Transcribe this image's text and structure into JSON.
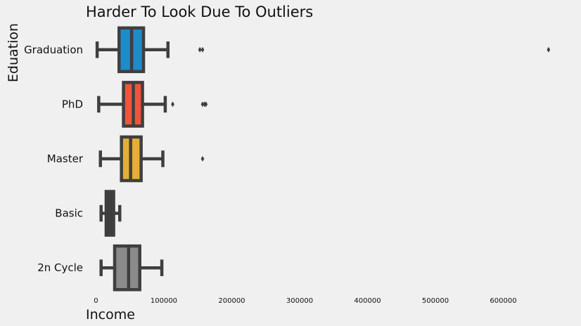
{
  "chart_data": {
    "type": "boxplot",
    "orientation": "horizontal",
    "title": "Harder To Look Due To Outliers",
    "xlabel": "Income",
    "ylabel": "Eduation",
    "xlim": [
      -15000,
      700000
    ],
    "xticks": [
      0,
      100000,
      200000,
      300000,
      400000,
      500000,
      600000
    ],
    "grid": false,
    "categories": [
      "Graduation",
      "PhD",
      "Master",
      "Basic",
      "2n Cycle"
    ],
    "boxes": [
      {
        "category": "Graduation",
        "color": "#1f8bc8",
        "whisker_low": 1700,
        "q1": 34000,
        "median": 52500,
        "q3": 70000,
        "whisker_high": 106000,
        "outliers": [
          153000,
          157000,
          666666
        ]
      },
      {
        "category": "PhD",
        "color": "#f0553a",
        "whisker_low": 4000,
        "q1": 40500,
        "median": 55000,
        "q3": 68500,
        "whisker_high": 102000,
        "outliers": [
          113000,
          157000,
          160000,
          162000
        ]
      },
      {
        "category": "Master",
        "color": "#e5ae38",
        "whisker_low": 6500,
        "q1": 37500,
        "median": 51000,
        "q3": 66500,
        "whisker_high": 98500,
        "outliers": [
          157000
        ]
      },
      {
        "category": "Basic",
        "color": "#3a3a3a",
        "whisker_low": 7500,
        "q1": 15000,
        "median": 20500,
        "q3": 26000,
        "whisker_high": 35000,
        "outliers": []
      },
      {
        "category": "2n Cycle",
        "color": "#8b8b8b",
        "whisker_low": 7500,
        "q1": 27500,
        "median": 48000,
        "q3": 64500,
        "whisker_high": 97000,
        "outliers": []
      }
    ]
  }
}
